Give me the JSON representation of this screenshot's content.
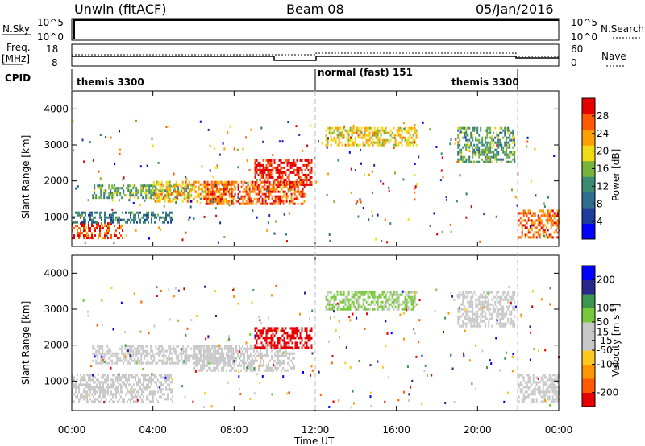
{
  "header": {
    "station": "Unwin (fitACF)",
    "beam": "Beam 08",
    "date": "05/Jan/2016"
  },
  "panel_labels": {
    "nsky": "N.Sky",
    "nsearch": "N.Search",
    "freq_top": "Freq.",
    "freq_unit": "[MHz]",
    "nave": "Nave",
    "cpid": "CPID",
    "nsky_hi": "10^5",
    "nsky_lo": "10^0",
    "nsearch_hi": "10^5",
    "nsearch_lo": "10^0",
    "freq_hi": "18",
    "freq_lo": "8",
    "nave_hi": "60",
    "nave_lo": "0",
    "cpid_1": "themis 3300",
    "cpid_2": "normal (fast) 151",
    "cpid_3": "themis 3300"
  },
  "axes": {
    "ylabel": "Slant Range [km]",
    "xlabel": "Time UT",
    "x_ticks": [
      "00:00",
      "04:00",
      "08:00",
      "12:00",
      "16:00",
      "20:00",
      "00:00"
    ],
    "y_ticks": [
      "1000",
      "2000",
      "3000",
      "4000"
    ],
    "power_label": "Power [dB]",
    "velocity_label": "Velocity [m s",
    "velocity_sup": "-1",
    "velocity_close": "]"
  },
  "colors": {
    "power": [
      "#0000ff",
      "#1e3c9b",
      "#2d6e8c",
      "#3c8c73",
      "#78b43c",
      "#f0dc14",
      "#ffa000",
      "#ff5a00",
      "#e60000"
    ],
    "velocity": [
      "#e60000",
      "#ff5a00",
      "#ff9600",
      "#ffc81e",
      "#c8c8c8",
      "#c8c8c8",
      "#78c83c",
      "#3c9650",
      "#28288c",
      "#0000ff"
    ]
  },
  "chart_data": [
    {
      "type": "heatmap",
      "title": "Power",
      "xlabel": "Time UT",
      "ylabel": "Slant Range [km]",
      "xlim": [
        0,
        24
      ],
      "ylim": [
        180,
        4500
      ],
      "x_ticks": [
        0,
        4,
        8,
        12,
        16,
        20,
        24
      ],
      "y_ticks": [
        1000,
        2000,
        3000,
        4000
      ],
      "colorbar": {
        "label": "Power [dB]",
        "ticks": [
          4,
          8,
          12,
          16,
          20,
          24,
          28
        ],
        "range": [
          0,
          32
        ]
      },
      "regions": [
        {
          "t": [
            0,
            2.5
          ],
          "r": [
            400,
            850
          ],
          "level": 28
        },
        {
          "t": [
            0,
            5
          ],
          "r": [
            850,
            1150
          ],
          "level": 10
        },
        {
          "t": [
            1,
            6
          ],
          "r": [
            1500,
            1900
          ],
          "level": 14
        },
        {
          "t": [
            4,
            8
          ],
          "r": [
            1400,
            2000
          ],
          "level": 22
        },
        {
          "t": [
            6.5,
            11.5
          ],
          "r": [
            1350,
            2000
          ],
          "level": 27
        },
        {
          "t": [
            9,
            11.8
          ],
          "r": [
            1900,
            2600
          ],
          "level": 30
        },
        {
          "t": [
            12.5,
            17
          ],
          "r": [
            3000,
            3500
          ],
          "level": 20
        },
        {
          "t": [
            19,
            21.8
          ],
          "r": [
            2500,
            3500
          ],
          "level": 14
        },
        {
          "t": [
            22,
            24
          ],
          "r": [
            400,
            1200
          ],
          "level": 26
        }
      ]
    },
    {
      "type": "heatmap",
      "title": "Velocity",
      "xlabel": "Time UT",
      "ylabel": "Slant Range [km]",
      "xlim": [
        0,
        24
      ],
      "ylim": [
        180,
        4500
      ],
      "x_ticks": [
        0,
        4,
        8,
        12,
        16,
        20,
        24
      ],
      "y_ticks": [
        1000,
        2000,
        3000,
        4000
      ],
      "colorbar": {
        "label": "Velocity [m s-1]",
        "ticks": [
          -200,
          -100,
          -50,
          -15,
          15,
          50,
          100,
          200
        ],
        "range": [
          -250,
          250
        ]
      },
      "regions": [
        {
          "t": [
            0,
            5
          ],
          "r": [
            400,
            1200
          ],
          "level": 0
        },
        {
          "t": [
            1,
            8
          ],
          "r": [
            1500,
            2000
          ],
          "level": 0
        },
        {
          "t": [
            6,
            11
          ],
          "r": [
            1300,
            2000
          ],
          "level": 0
        },
        {
          "t": [
            9,
            11.8
          ],
          "r": [
            1900,
            2500
          ],
          "level": -220
        },
        {
          "t": [
            12.5,
            17
          ],
          "r": [
            3000,
            3500
          ],
          "level": 60
        },
        {
          "t": [
            19,
            21.8
          ],
          "r": [
            2500,
            3500
          ],
          "level": 0
        },
        {
          "t": [
            22,
            24
          ],
          "r": [
            400,
            1200
          ],
          "level": 0
        }
      ]
    }
  ]
}
